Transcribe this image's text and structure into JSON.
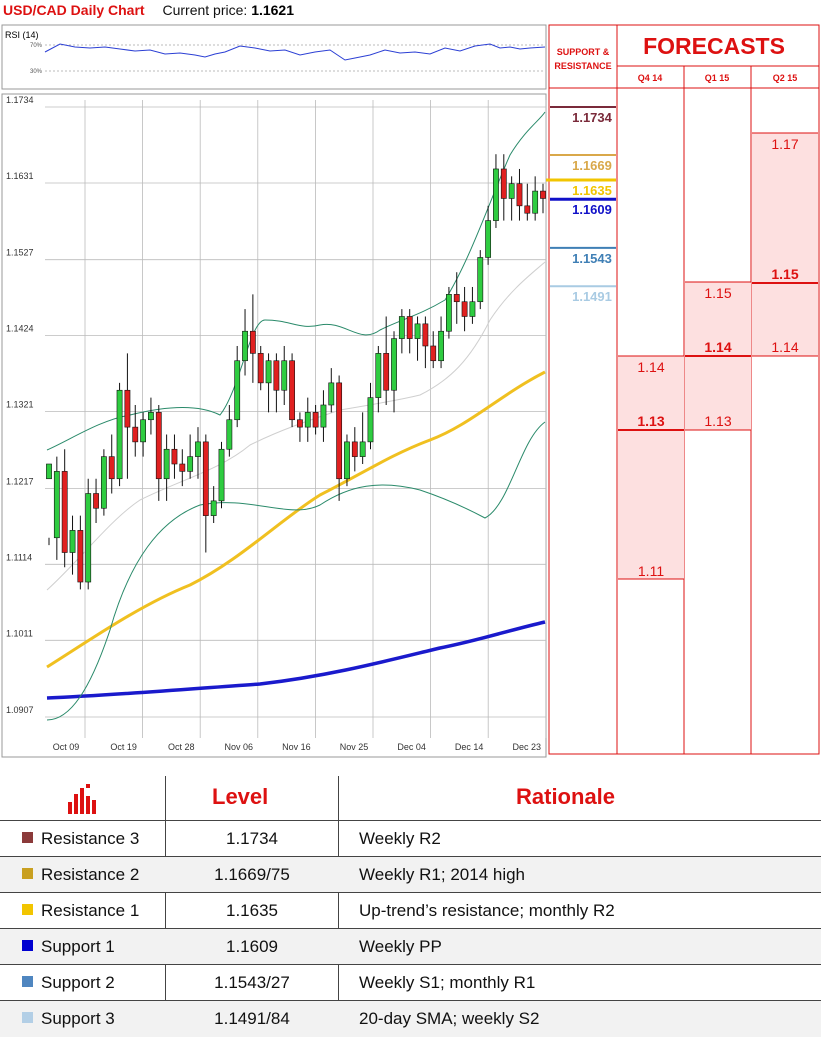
{
  "header": {
    "title": "USD/CAD Daily Chart",
    "price_label": "Current price:",
    "price_value": "1.1621"
  },
  "rsi": {
    "label": "RSI (14)",
    "levels": [
      "70%",
      "30%"
    ]
  },
  "chart_data": {
    "type": "candlestick",
    "y_ticks": [
      "1.1734",
      "1.1631",
      "1.1527",
      "1.1424",
      "1.1321",
      "1.1217",
      "1.1114",
      "1.1011",
      "1.0907"
    ],
    "x_ticks": [
      "Oct 09",
      "Oct 19",
      "Oct 28",
      "Nov 06",
      "Nov 16",
      "Nov 25",
      "Dec 04",
      "Dec 14",
      "Dec 23"
    ],
    "ylim": [
      1.0907,
      1.1734
    ],
    "candles": [
      [
        1.123,
        1.125,
        1.115,
        1.114
      ],
      [
        1.115,
        1.124,
        1.126,
        1.112
      ],
      [
        1.124,
        1.113,
        1.127,
        1.111
      ],
      [
        1.113,
        1.116,
        1.118,
        1.11
      ],
      [
        1.116,
        1.109,
        1.118,
        1.108
      ],
      [
        1.109,
        1.121,
        1.123,
        1.108
      ],
      [
        1.121,
        1.119,
        1.123,
        1.117
      ],
      [
        1.119,
        1.126,
        1.127,
        1.118
      ],
      [
        1.126,
        1.123,
        1.129,
        1.121
      ],
      [
        1.123,
        1.135,
        1.136,
        1.122
      ],
      [
        1.135,
        1.13,
        1.14,
        1.123
      ],
      [
        1.13,
        1.128,
        1.133,
        1.126
      ],
      [
        1.128,
        1.131,
        1.132,
        1.126
      ],
      [
        1.131,
        1.132,
        1.134,
        1.129
      ],
      [
        1.132,
        1.123,
        1.133,
        1.12
      ],
      [
        1.123,
        1.127,
        1.129,
        1.12
      ],
      [
        1.127,
        1.125,
        1.129,
        1.123
      ],
      [
        1.125,
        1.124,
        1.127,
        1.122
      ],
      [
        1.124,
        1.126,
        1.129,
        1.123
      ],
      [
        1.126,
        1.128,
        1.13,
        1.123
      ],
      [
        1.128,
        1.118,
        1.129,
        1.113
      ],
      [
        1.118,
        1.12,
        1.122,
        1.117
      ],
      [
        1.12,
        1.127,
        1.128,
        1.119
      ],
      [
        1.127,
        1.131,
        1.133,
        1.126
      ],
      [
        1.131,
        1.139,
        1.141,
        1.13
      ],
      [
        1.139,
        1.143,
        1.146,
        1.137
      ],
      [
        1.143,
        1.14,
        1.148,
        1.136
      ],
      [
        1.14,
        1.136,
        1.141,
        1.135
      ],
      [
        1.136,
        1.139,
        1.14,
        1.132
      ],
      [
        1.139,
        1.135,
        1.14,
        1.132
      ],
      [
        1.135,
        1.139,
        1.141,
        1.133
      ],
      [
        1.139,
        1.131,
        1.14,
        1.13
      ],
      [
        1.131,
        1.13,
        1.132,
        1.128
      ],
      [
        1.13,
        1.132,
        1.134,
        1.128
      ],
      [
        1.132,
        1.13,
        1.133,
        1.129
      ],
      [
        1.13,
        1.133,
        1.135,
        1.128
      ],
      [
        1.133,
        1.136,
        1.138,
        1.132
      ],
      [
        1.136,
        1.123,
        1.137,
        1.12
      ],
      [
        1.123,
        1.128,
        1.129,
        1.122
      ],
      [
        1.128,
        1.126,
        1.13,
        1.124
      ],
      [
        1.126,
        1.128,
        1.132,
        1.125
      ],
      [
        1.128,
        1.134,
        1.136,
        1.127
      ],
      [
        1.134,
        1.14,
        1.141,
        1.132
      ],
      [
        1.14,
        1.135,
        1.145,
        1.133
      ],
      [
        1.135,
        1.142,
        1.143,
        1.132
      ],
      [
        1.142,
        1.145,
        1.146,
        1.14
      ],
      [
        1.145,
        1.142,
        1.146,
        1.14
      ],
      [
        1.142,
        1.144,
        1.145,
        1.139
      ],
      [
        1.144,
        1.141,
        1.145,
        1.138
      ],
      [
        1.141,
        1.139,
        1.143,
        1.138
      ],
      [
        1.139,
        1.143,
        1.145,
        1.138
      ],
      [
        1.143,
        1.148,
        1.149,
        1.142
      ],
      [
        1.148,
        1.147,
        1.151,
        1.144
      ],
      [
        1.147,
        1.145,
        1.149,
        1.143
      ],
      [
        1.145,
        1.147,
        1.149,
        1.144
      ],
      [
        1.147,
        1.153,
        1.154,
        1.146
      ],
      [
        1.153,
        1.158,
        1.16,
        1.152
      ],
      [
        1.158,
        1.165,
        1.167,
        1.157
      ],
      [
        1.165,
        1.161,
        1.167,
        1.158
      ],
      [
        1.161,
        1.163,
        1.164,
        1.158
      ],
      [
        1.163,
        1.16,
        1.165,
        1.158
      ],
      [
        1.16,
        1.159,
        1.163,
        1.158
      ],
      [
        1.159,
        1.162,
        1.164,
        1.158
      ],
      [
        1.162,
        1.161,
        1.163,
        1.159
      ]
    ],
    "levels": [
      {
        "value": "1.1734",
        "color": "#7a2a3a"
      },
      {
        "value": "1.1669",
        "color": "#d9a84a"
      },
      {
        "value": "1.1635",
        "color": "#f2c500"
      },
      {
        "value": "1.1609",
        "color": "#1010c8"
      },
      {
        "value": "1.1543",
        "color": "#3f7fb5"
      },
      {
        "value": "1.1491",
        "color": "#a9cbe3"
      }
    ]
  },
  "sr_panel": {
    "title_line1": "SUPPORT &",
    "title_line2": "RESISTANCE"
  },
  "forecasts": {
    "title": "FORECASTS",
    "columns": [
      "Q4 14",
      "Q1 15",
      "Q2 15"
    ],
    "q4": {
      "high": "1.14",
      "mid": "1.13",
      "low": "1.11"
    },
    "q1": {
      "high": "1.15",
      "mid": "1.14",
      "low": "1.13"
    },
    "q2": {
      "high": "1.17",
      "mid": "1.15",
      "low": "1.14"
    }
  },
  "table": {
    "headers": [
      "Level",
      "Rationale"
    ],
    "rows": [
      {
        "name": "Resistance 3",
        "level": "1.1734",
        "rationale": "Weekly R2",
        "color": "#8b3a3a"
      },
      {
        "name": "Resistance 2",
        "level": "1.1669/75",
        "rationale": "Weekly R1; 2014 high",
        "color": "#c9a020"
      },
      {
        "name": "Resistance 1",
        "level": "1.1635",
        "rationale": "Up-trend’s resistance; monthly R2",
        "color": "#f2c500"
      },
      {
        "name": "Support 1",
        "level": "1.1609",
        "rationale": "Weekly PP",
        "color": "#0000d0"
      },
      {
        "name": "Support 2",
        "level": "1.1543/27",
        "rationale": "Weekly S1; monthly R1",
        "color": "#4f86c0"
      },
      {
        "name": "Support 3",
        "level": "1.1491/84",
        "rationale": "20-day SMA; weekly S2",
        "color": "#b3cfe6"
      }
    ]
  }
}
